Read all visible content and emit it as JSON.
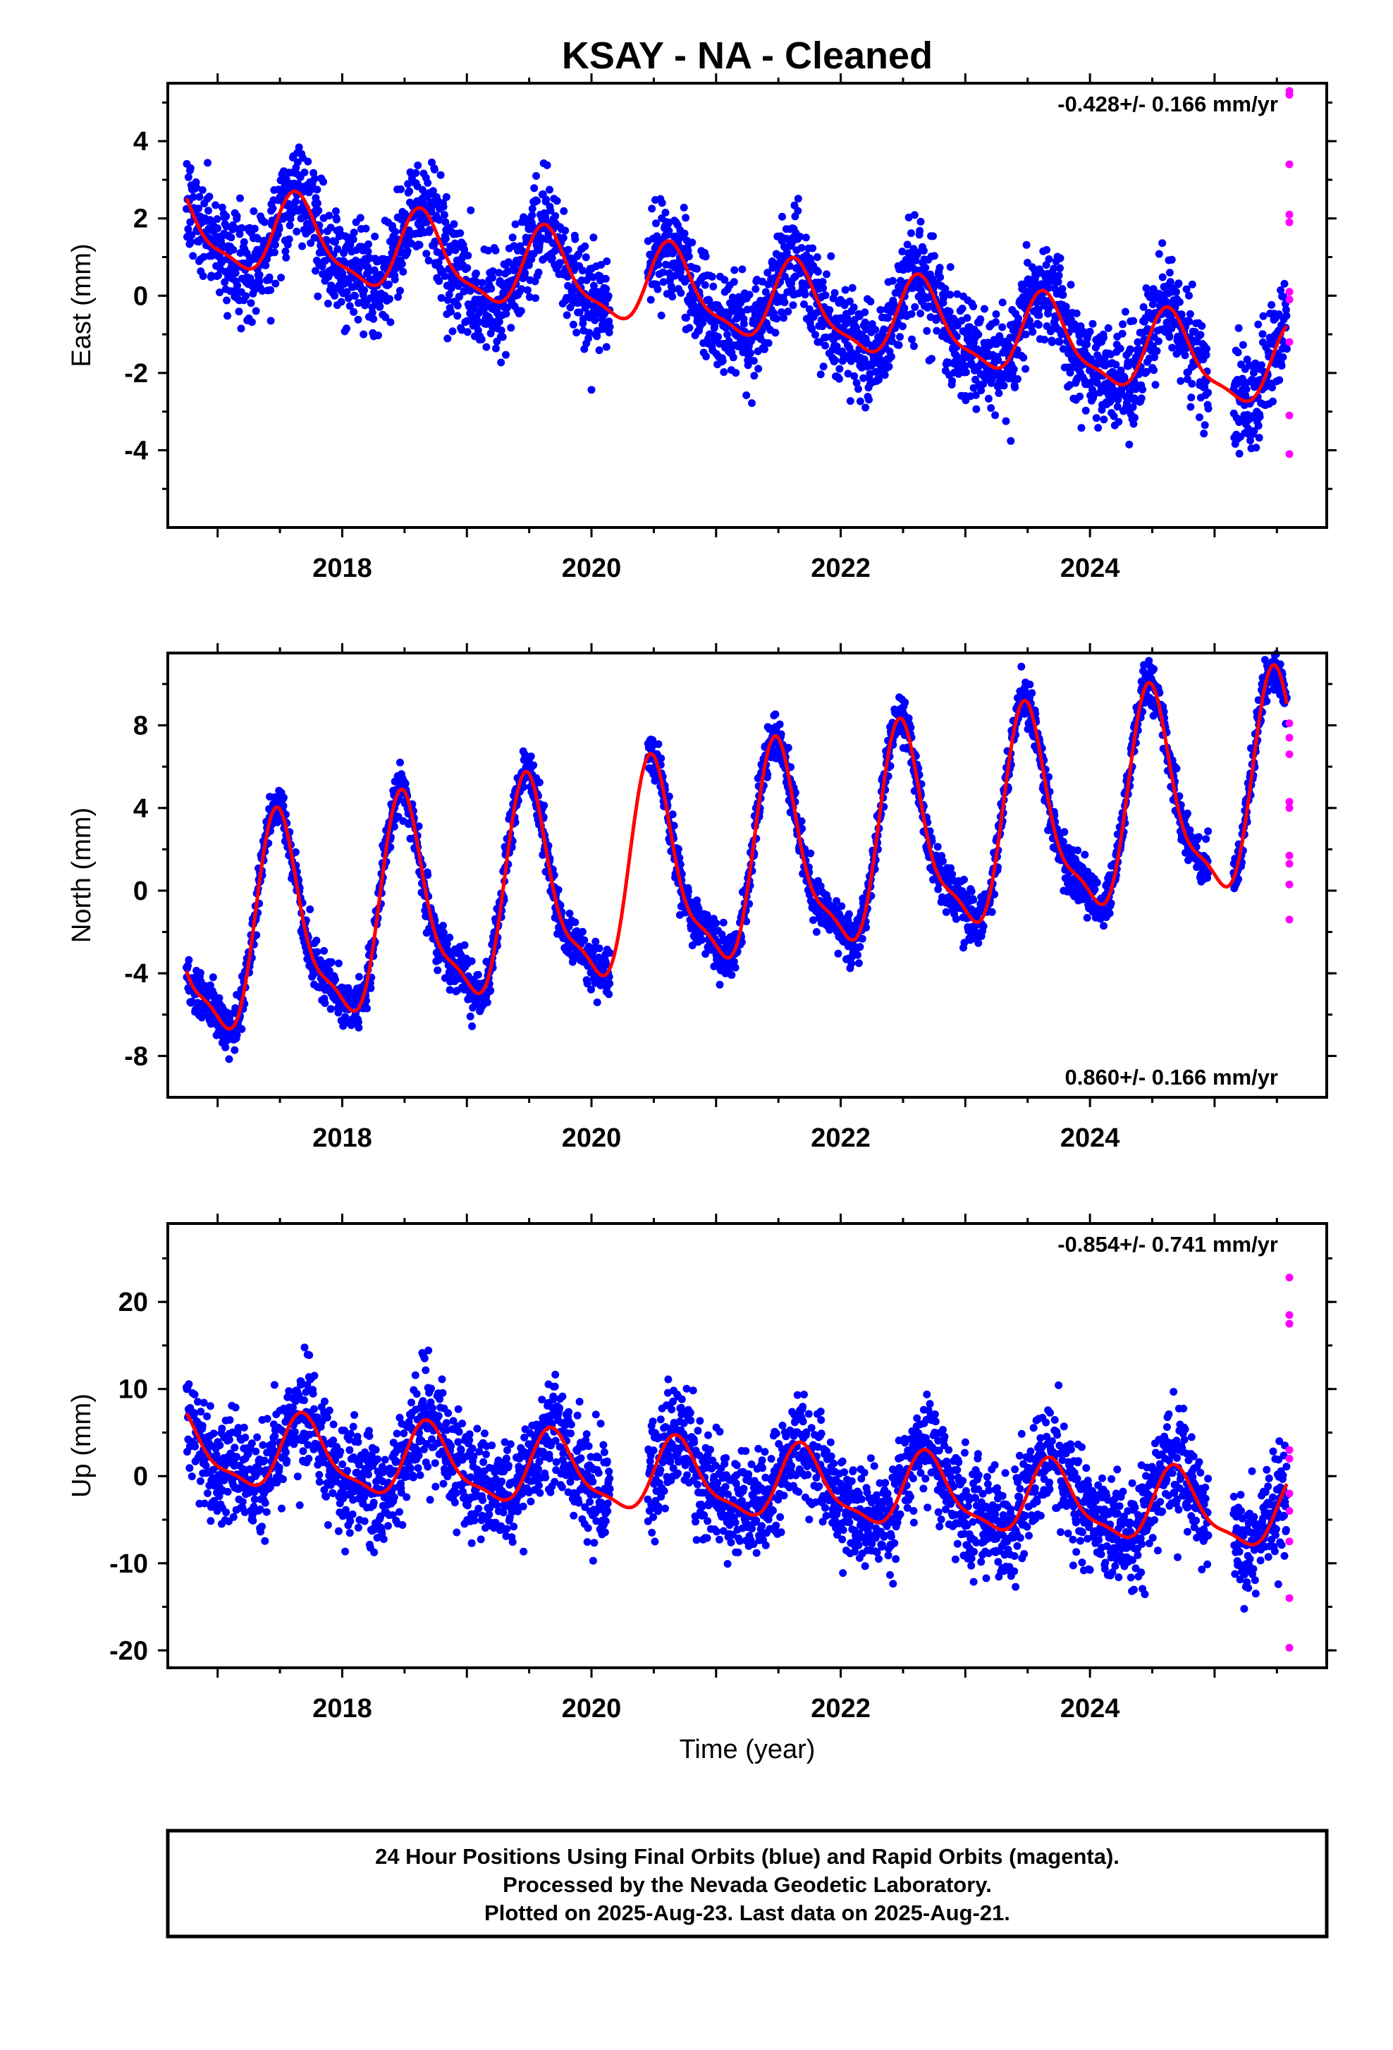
{
  "colors": {
    "final": "#0000ff",
    "rapid": "#ff00ff",
    "model": "#ff0000",
    "frame": "#000000",
    "background": "#ffffff"
  },
  "chart_data": {
    "type": "scatter",
    "title": "KSAY  - NA - Cleaned",
    "xlabel": "Time (year)",
    "xlim": [
      2016.6,
      2025.9
    ],
    "xticks": [
      2018,
      2020,
      2022,
      2024
    ],
    "xtick_labels": [
      "2018",
      "2020",
      "2022",
      "2024"
    ],
    "x_first_data": 2016.75,
    "x_last_final": 2025.58,
    "x_rapid": 2025.6,
    "panels": [
      {
        "id": "east",
        "ylabel": "East (mm)",
        "ylim": [
          -6,
          5.5
        ],
        "yticks": [
          4,
          2,
          0,
          -2,
          -4
        ],
        "ytick_labels": [
          "4",
          "2",
          "0",
          "-2",
          "-4"
        ],
        "rate_label": "-0.428+/- 0.166 mm/yr",
        "rate_position": "top-right",
        "rate_mm_yr": -0.428,
        "annual_amp": 1.0,
        "annual_phase_year": 2016.65,
        "offset": 1.8,
        "noise_sd": 0.95,
        "final_value_2025_5": -3.3,
        "rapid_values": [
          5.3,
          5.2,
          3.4,
          2.1,
          1.9,
          0.1,
          -0.1,
          -1.2,
          -3.1,
          -4.1
        ]
      },
      {
        "id": "north",
        "ylabel": "North (mm)",
        "ylim": [
          -10,
          11.5
        ],
        "yticks": [
          8,
          4,
          0,
          -4,
          -8
        ],
        "ytick_labels": [
          "8",
          "4",
          "0",
          "-4",
          "-8"
        ],
        "rate_label": "0.860+/- 0.166 mm/yr",
        "rate_position": "bottom-right",
        "rate_mm_yr": 0.86,
        "annual_amp": 4.8,
        "annual_phase_year": 2017.5,
        "offset": -2.7,
        "noise_sd": 0.8,
        "final_value_2025_5": 8.8,
        "rapid_values": [
          8.1,
          7.4,
          6.6,
          4.3,
          4.0,
          1.7,
          1.3,
          0.3,
          -1.4
        ]
      },
      {
        "id": "up",
        "ylabel": "Up (mm)",
        "ylim": [
          -22,
          29
        ],
        "yticks": [
          20,
          10,
          0,
          -10,
          -20
        ],
        "ytick_labels": [
          "20",
          "10",
          "0",
          "-10",
          "-20"
        ],
        "rate_label": "-0.854+/- 0.741 mm/yr",
        "rate_position": "top-right",
        "rate_mm_yr": -0.854,
        "annual_amp": 4.0,
        "annual_phase_year": 2017.7,
        "offset": 3.0,
        "noise_sd": 4.3,
        "final_value_2025_5": -6.9,
        "rapid_values": [
          22.8,
          18.5,
          17.5,
          3.0,
          2.0,
          -2.0,
          -4.0,
          -7.5,
          -14.0,
          -19.7
        ]
      }
    ]
  },
  "footer": {
    "line1": "24 Hour Positions Using Final Orbits (blue) and Rapid Orbits (magenta).",
    "line2": "Processed by the Nevada Geodetic Laboratory.",
    "line3": "Plotted on 2025-Aug-23. Last data on 2025-Aug-21."
  }
}
